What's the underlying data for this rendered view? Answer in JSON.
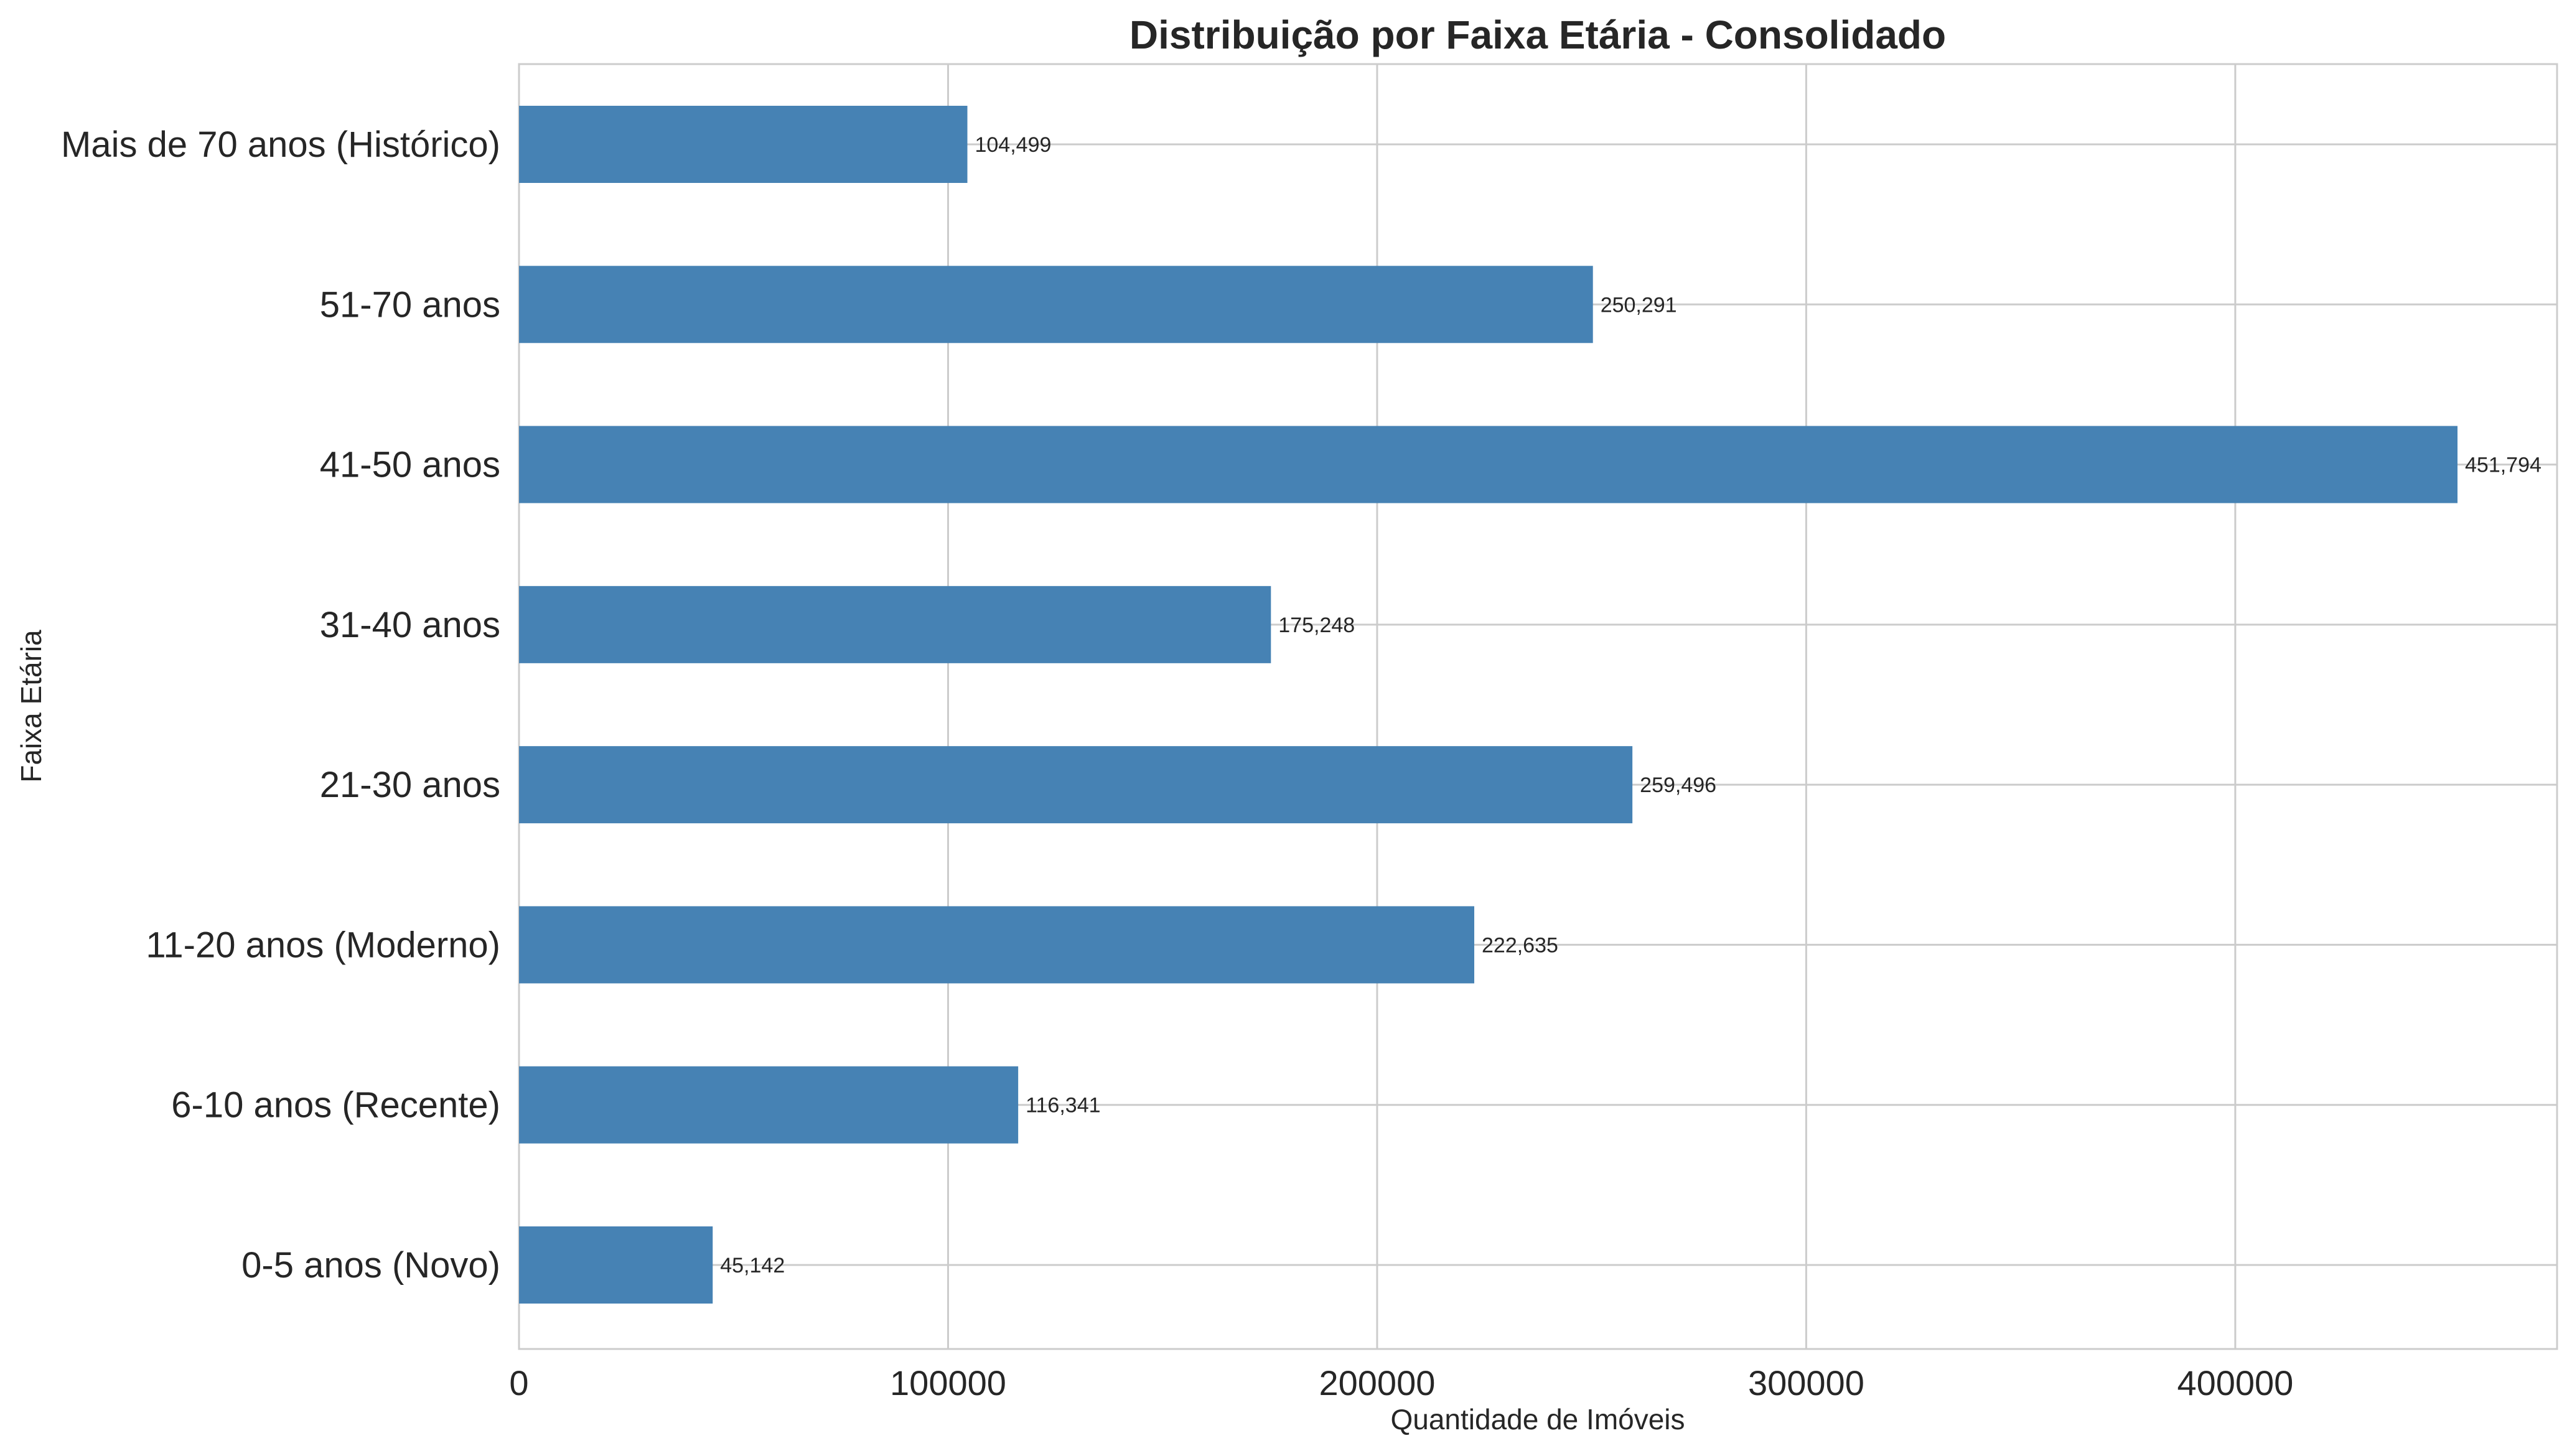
{
  "chart_data": {
    "type": "bar",
    "orientation": "horizontal",
    "title": "Distribuição por Faixa Etária - Consolidado",
    "xlabel": "Quantidade de Imóveis",
    "ylabel": "Faixa Etária",
    "xlim": [
      0,
      475000
    ],
    "xticks": [
      0,
      100000,
      200000,
      300000,
      400000
    ],
    "xtick_labels": [
      "0",
      "100000",
      "200000",
      "300000",
      "400000"
    ],
    "grid": true,
    "bar_color": "#4682b4",
    "categories": [
      "0-5 anos (Novo)",
      "6-10 anos (Recente)",
      "11-20 anos (Moderno)",
      "21-30 anos",
      "31-40 anos",
      "41-50 anos",
      "51-70 anos",
      "Mais de 70 anos (Histórico)"
    ],
    "values": [
      45142,
      116341,
      222635,
      259496,
      175248,
      451794,
      250291,
      104499
    ],
    "value_labels": [
      "45,142",
      "116,341",
      "222,635",
      "259,496",
      "175,248",
      "451,794",
      "250,291",
      "104,499"
    ]
  }
}
